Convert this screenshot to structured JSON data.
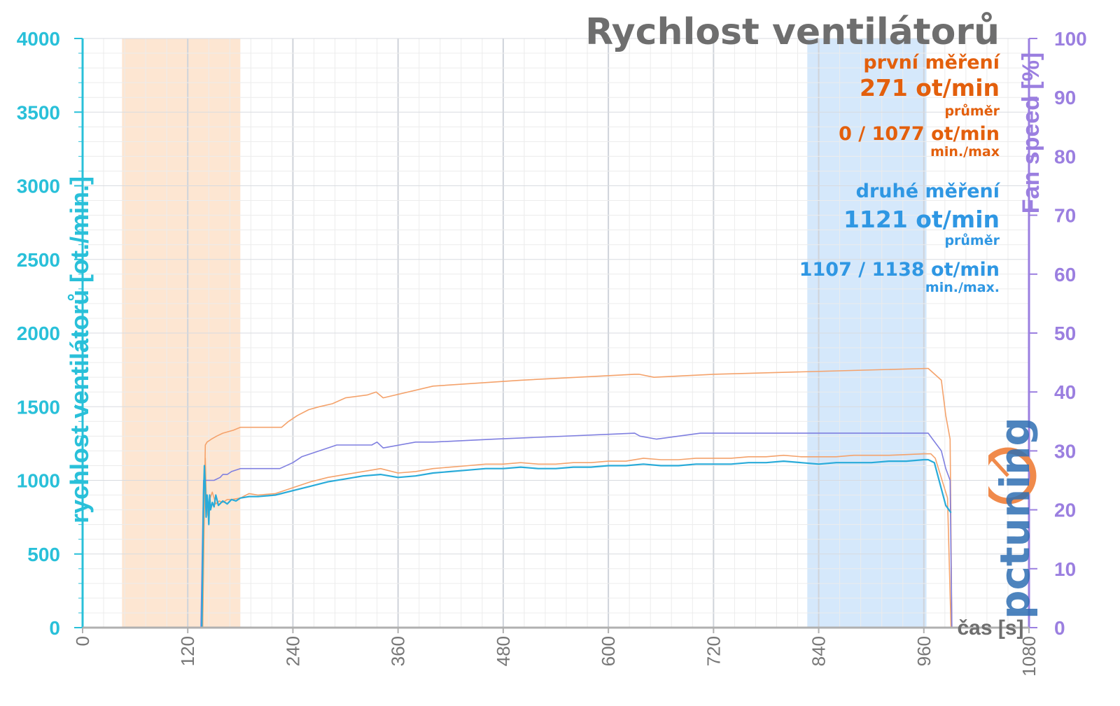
{
  "chart_data": {
    "type": "line",
    "title": "Rychlost ventilátorů",
    "xlabel": "čas [s]",
    "ylabel": "rychlost ventilátorů [ot./min.]",
    "y2label": "Fan speed [%]",
    "xlim": [
      0,
      1080
    ],
    "ylim": [
      0,
      4000
    ],
    "y2lim": [
      0,
      100
    ],
    "x_ticks": [
      "0",
      "120",
      "240",
      "360",
      "480",
      "600",
      "720",
      "840",
      "960",
      "1080"
    ],
    "y_ticks": [
      "0",
      "500",
      "1000",
      "1500",
      "2000",
      "2500",
      "3000",
      "3500",
      "4000"
    ],
    "y2_ticks": [
      "0",
      "10",
      "20",
      "30",
      "40",
      "50",
      "60",
      "70",
      "80",
      "90",
      "100"
    ],
    "grid": true,
    "shaded_regions": [
      {
        "x": [
          45,
          180
        ],
        "color": "#fde6d2"
      },
      {
        "x": [
          827,
          963
        ],
        "color": "#d5e8fb"
      }
    ],
    "series": [
      {
        "color": "#f4a26b",
        "axis": "left",
        "x": [
          0,
          137,
          138,
          140,
          141,
          143,
          145,
          148,
          152,
          156,
          160,
          165,
          170,
          180,
          190,
          200,
          220,
          240,
          260,
          280,
          300,
          320,
          340,
          360,
          380,
          400,
          420,
          440,
          460,
          480,
          500,
          520,
          540,
          560,
          580,
          600,
          620,
          640,
          660,
          680,
          700,
          720,
          740,
          760,
          780,
          800,
          820,
          840,
          860,
          880,
          900,
          920,
          940,
          960,
          968,
          973,
          987,
          991
        ],
        "y": [
          0,
          0,
          600,
          1150,
          900,
          760,
          870,
          920,
          840,
          860,
          850,
          870,
          870,
          880,
          910,
          900,
          910,
          950,
          990,
          1020,
          1040,
          1060,
          1080,
          1050,
          1060,
          1080,
          1090,
          1100,
          1110,
          1110,
          1120,
          1110,
          1110,
          1120,
          1120,
          1130,
          1130,
          1150,
          1140,
          1140,
          1150,
          1150,
          1150,
          1160,
          1160,
          1170,
          1160,
          1160,
          1160,
          1170,
          1170,
          1170,
          1175,
          1180,
          1180,
          1150,
          880,
          0
        ]
      },
      {
        "color": "#f4a26b",
        "axis": "right",
        "x": [
          0,
          137,
          140,
          142,
          147,
          153,
          160,
          172,
          180,
          227,
          235,
          245,
          258,
          270,
          285,
          300,
          325,
          335,
          343,
          400,
          500,
          630,
          635,
          652,
          720,
          965,
          980,
          985,
          990,
          992
        ],
        "y": [
          0,
          0,
          31,
          31.5,
          32,
          32.5,
          33,
          33.5,
          34,
          34,
          35,
          36,
          37,
          37.5,
          38,
          39,
          39.5,
          40,
          39,
          41,
          42,
          43,
          43,
          42.5,
          43,
          44,
          42,
          36,
          32,
          0
        ]
      },
      {
        "color": "#7f7fe0",
        "axis": "right",
        "x": [
          0,
          135,
          138,
          142,
          150,
          157,
          160,
          165,
          170,
          180,
          190,
          205,
          225,
          240,
          250,
          270,
          290,
          300,
          330,
          336,
          343,
          380,
          400,
          470,
          630,
          636,
          655,
          705,
          965,
          980,
          985,
          990,
          992
        ],
        "y": [
          0,
          0,
          25,
          25,
          25,
          25.5,
          26,
          26,
          26.5,
          27,
          27,
          27,
          27,
          28,
          29,
          30,
          31,
          31,
          31,
          31.5,
          30.5,
          31.5,
          31.5,
          32,
          33,
          32.5,
          32,
          33,
          33,
          30,
          27,
          25,
          0
        ]
      },
      {
        "color": "#29abd9",
        "axis": "left",
        "x": [
          0,
          136,
          137,
          138,
          139,
          140,
          141,
          142,
          143,
          144,
          145,
          146,
          148,
          150,
          152,
          155,
          160,
          165,
          170,
          175,
          180,
          190,
          200,
          220,
          240,
          260,
          280,
          300,
          320,
          340,
          360,
          380,
          400,
          420,
          440,
          460,
          480,
          500,
          520,
          540,
          560,
          580,
          600,
          620,
          640,
          660,
          680,
          700,
          720,
          740,
          760,
          780,
          800,
          820,
          840,
          860,
          880,
          900,
          920,
          940,
          960,
          965,
          972,
          985,
          991
        ],
        "y": [
          0,
          0,
          400,
          900,
          1100,
          950,
          750,
          900,
          850,
          700,
          900,
          800,
          850,
          820,
          900,
          830,
          860,
          840,
          870,
          860,
          880,
          890,
          890,
          900,
          930,
          960,
          990,
          1010,
          1030,
          1040,
          1020,
          1030,
          1050,
          1060,
          1070,
          1080,
          1080,
          1090,
          1080,
          1080,
          1090,
          1090,
          1100,
          1100,
          1110,
          1100,
          1100,
          1110,
          1110,
          1110,
          1120,
          1120,
          1130,
          1120,
          1110,
          1120,
          1120,
          1120,
          1130,
          1130,
          1140,
          1140,
          1120,
          830,
          780
        ]
      }
    ]
  },
  "stats": {
    "first_label": "první měření",
    "first_avg": "271 ot/min",
    "first_avg_label": "průměr",
    "first_minmax": "0 / 1077 ot/min",
    "first_minmax_label": "min./max",
    "second_label": "druhé měření",
    "second_avg": "1121 ot/min",
    "second_avg_label": "průměr",
    "second_minmax": "1107 / 1138 ot/min",
    "second_minmax_label": "min./max."
  },
  "logo_text": "pctuning",
  "colors": {
    "left_axis": "#29c0d9",
    "right_axis": "#9b7fe0",
    "grid": "#e6e6e6",
    "first": "#e35f0c",
    "second": "#2f97e3"
  }
}
